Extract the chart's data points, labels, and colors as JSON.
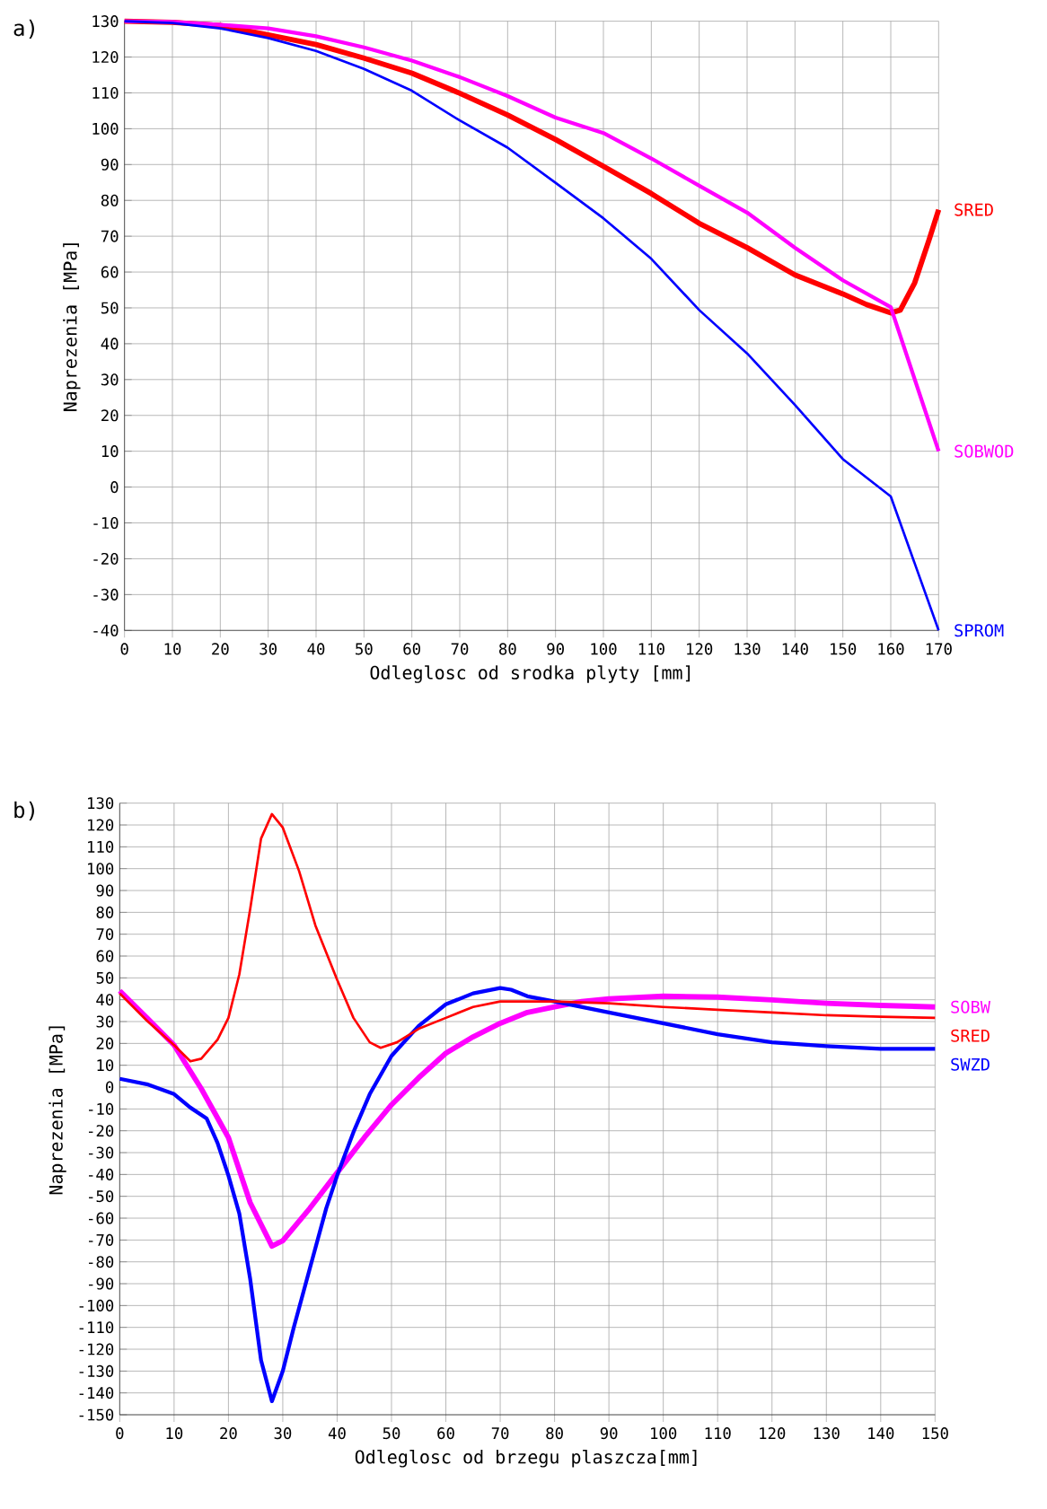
{
  "chart_data": [
    {
      "type": "line",
      "annotations": [
        "a)"
      ],
      "xlabel": "Odleglosc od srodka plyty [mm]",
      "ylabel": "Naprezenia [MPa]",
      "xlim": [
        0,
        170
      ],
      "ylim": [
        -40,
        130
      ],
      "xticks": [
        0,
        10,
        20,
        30,
        40,
        50,
        60,
        70,
        80,
        90,
        100,
        110,
        120,
        130,
        140,
        150,
        160,
        170
      ],
      "yticks": [
        -40,
        -30,
        -20,
        -10,
        0,
        10,
        20,
        30,
        40,
        50,
        60,
        70,
        80,
        90,
        100,
        110,
        120,
        130
      ],
      "grid": true,
      "legend": false,
      "series": [
        {
          "name": "SRED",
          "color": "#ff0000",
          "x": [
            0,
            10,
            20,
            30,
            40,
            50,
            60,
            70,
            80,
            90,
            100,
            110,
            120,
            130,
            140,
            150,
            155,
            160,
            162,
            165,
            168,
            170
          ],
          "values": [
            130,
            129.7,
            128.8,
            126.2,
            123.5,
            119.7,
            115.5,
            109.9,
            103.8,
            97,
            89.5,
            81.9,
            73.6,
            66.8,
            59.2,
            53.9,
            50.9,
            48.6,
            49.4,
            57,
            69,
            77.4
          ]
        },
        {
          "name": "SOBWOD",
          "color": "#ff00ff",
          "x": [
            0,
            10,
            20,
            30,
            40,
            50,
            60,
            70,
            80,
            90,
            100,
            110,
            120,
            130,
            140,
            150,
            160,
            170
          ],
          "values": [
            130,
            129.8,
            129,
            128,
            125.8,
            122.7,
            119,
            114.4,
            109.1,
            103.1,
            98.8,
            91.7,
            84.1,
            76.6,
            66.8,
            57.7,
            50.2,
            10
          ]
        },
        {
          "name": "SPROM",
          "color": "#0000ff",
          "x": [
            0,
            10,
            20,
            30,
            40,
            50,
            60,
            70,
            80,
            90,
            100,
            110,
            120,
            130,
            140,
            150,
            160,
            170
          ],
          "values": [
            130,
            129.5,
            128,
            125.3,
            121.7,
            116.7,
            110.6,
            102.3,
            94.7,
            84.9,
            75,
            63.7,
            49.4,
            37.3,
            22.9,
            7.8,
            -2.6,
            -40
          ]
        }
      ]
    },
    {
      "type": "line",
      "annotations": [
        "b)"
      ],
      "xlabel": "Odleglosc od brzegu plaszcza[mm]",
      "ylabel": "Naprezenia [MPa]",
      "xlim": [
        0,
        150
      ],
      "ylim": [
        -150,
        130
      ],
      "xticks": [
        0,
        10,
        20,
        30,
        40,
        50,
        60,
        70,
        80,
        90,
        100,
        110,
        120,
        130,
        140,
        150
      ],
      "yticks": [
        -150,
        -140,
        -130,
        -120,
        -110,
        -100,
        -90,
        -80,
        -70,
        -60,
        -50,
        -40,
        -30,
        -20,
        -10,
        0,
        10,
        20,
        30,
        40,
        50,
        60,
        70,
        80,
        90,
        100,
        110,
        120,
        130
      ],
      "grid": true,
      "legend": false,
      "series": [
        {
          "name": "SOBW",
          "color": "#ff00ff",
          "x": [
            0,
            5,
            10,
            15,
            20,
            24,
            28,
            30,
            35,
            40,
            45,
            50,
            55,
            60,
            65,
            70,
            75,
            80,
            85,
            90,
            100,
            110,
            120,
            130,
            140,
            150
          ],
          "values": [
            44.1,
            31.7,
            19.2,
            -0.7,
            -23.1,
            -52.9,
            -72.8,
            -70.3,
            -55.4,
            -39.2,
            -23.1,
            -8.1,
            4.3,
            15.5,
            23,
            29.2,
            34.2,
            36.7,
            39.2,
            40.4,
            41.6,
            41.2,
            39.9,
            38.4,
            37.4,
            36.7
          ]
        },
        {
          "name": "SWZD",
          "color": "#0000ff",
          "x": [
            0,
            5,
            10,
            13,
            16,
            18,
            20,
            22,
            24,
            26,
            28,
            30,
            32,
            35,
            38,
            40,
            43,
            46,
            50,
            55,
            60,
            65,
            70,
            72,
            75,
            80,
            90,
            100,
            110,
            120,
            130,
            140,
            150
          ],
          "values": [
            3.8,
            1.3,
            -3.2,
            -9.4,
            -14.4,
            -25.6,
            -40.5,
            -57.9,
            -87.8,
            -125,
            -143.8,
            -130,
            -110.2,
            -82.8,
            -55.4,
            -40.5,
            -20.6,
            -3.2,
            14.3,
            28,
            37.9,
            42.9,
            45.4,
            44.6,
            41.6,
            39.2,
            34.2,
            29.2,
            24.2,
            20.5,
            18.8,
            17.5,
            17.5
          ]
        },
        {
          "name": "SRED",
          "color": "#ff0000",
          "x": [
            0,
            5,
            10,
            13,
            15,
            18,
            20,
            22,
            24,
            26,
            28,
            30,
            33,
            36,
            40,
            43,
            46,
            48,
            51,
            55,
            60,
            65,
            70,
            80,
            90,
            100,
            110,
            120,
            130,
            140,
            150
          ],
          "values": [
            42.9,
            30.4,
            19.2,
            11.8,
            13,
            21.7,
            31.7,
            51.6,
            81.5,
            113.8,
            125,
            118.8,
            98.9,
            74,
            49.1,
            31.7,
            20.5,
            18,
            20.5,
            26.7,
            31.7,
            36.7,
            39.2,
            39.2,
            38.4,
            36.7,
            35.4,
            34.2,
            32.9,
            32.2,
            31.7
          ]
        }
      ]
    }
  ]
}
